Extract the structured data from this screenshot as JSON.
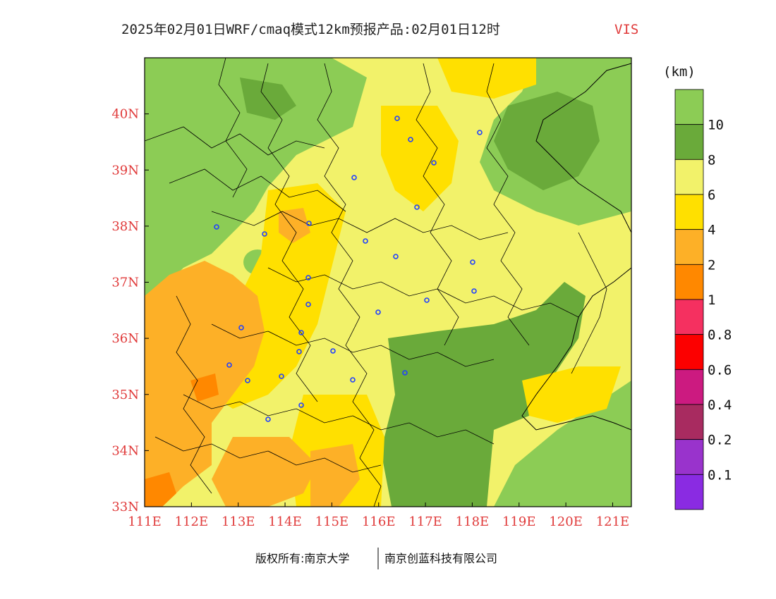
{
  "title": {
    "main": "2025年02月01日WRF/cmaq模式12km预报产品:02月01日12时",
    "variable": "VIS"
  },
  "map": {
    "lon_range": [
      111,
      121.4
    ],
    "lat_range": [
      33,
      41
    ],
    "x_ticks": [
      "111E",
      "112E",
      "113E",
      "114E",
      "115E",
      "116E",
      "117E",
      "118E",
      "119E",
      "120E",
      "121E"
    ],
    "y_ticks": [
      "33N",
      "34N",
      "35N",
      "36N",
      "37N",
      "38N",
      "39N",
      "40N"
    ],
    "axis_label_color": "#e03a3a"
  },
  "legend": {
    "unit": "(km)",
    "labels": [
      "10",
      "8",
      "6",
      "4",
      "2",
      "1",
      "0.8",
      "0.6",
      "0.4",
      "0.2",
      "0.1"
    ],
    "colors": [
      "#8ccc55",
      "#6aaa3a",
      "#f2f26a",
      "#ffe000",
      "#fdb027",
      "#ff8800",
      "#f53060",
      "#fc0000",
      "#cc1a80",
      "#a82b60",
      "#9933cc",
      "#8a2be2"
    ]
  },
  "colors": {
    "gt10": "#8ccc55",
    "c8_10": "#6aaa3a",
    "c6_8": "#f2f26a",
    "c4_6": "#ffe000",
    "c2_4": "#fdb027",
    "c1_2": "#ff8800"
  },
  "footer": {
    "copyright": "版权所有:南京大学",
    "company": "南京创蓝科技有限公司"
  }
}
